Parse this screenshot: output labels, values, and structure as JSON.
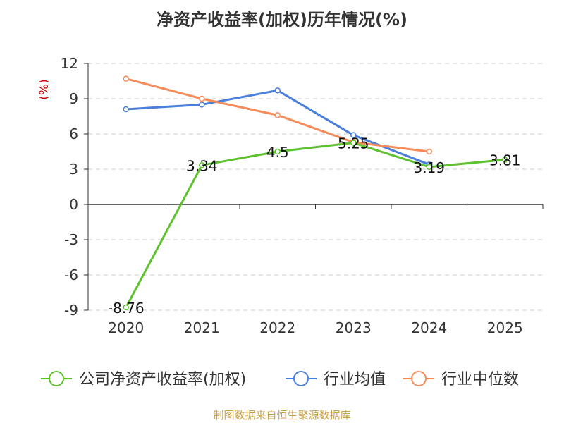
{
  "chart_data": {
    "type": "line",
    "title": "净资产收益率(加权)历年情况(%)",
    "ylabel": "(%)",
    "xlabel": "",
    "categories": [
      "2020",
      "2021",
      "2022",
      "2023",
      "2024",
      "2025"
    ],
    "ylim": [
      -9,
      12
    ],
    "yticks": [
      12,
      9,
      6,
      3,
      0,
      -3,
      -6,
      -9
    ],
    "grid": true,
    "legend_position": "bottom",
    "series": [
      {
        "name": "公司净资产收益率(加权)",
        "color": "#5ec22e",
        "values": [
          -8.76,
          3.34,
          4.5,
          5.25,
          3.19,
          3.81
        ],
        "labels": [
          "-8.76",
          "3.34",
          "4.5",
          "5.25",
          "3.19",
          "3.81"
        ]
      },
      {
        "name": "行业均值",
        "color": "#4a7fdc",
        "values": [
          8.1,
          8.5,
          9.7,
          5.9,
          3.4,
          null
        ]
      },
      {
        "name": "行业中位数",
        "color": "#f58c5a",
        "values": [
          10.7,
          9.0,
          7.6,
          5.3,
          4.5,
          null
        ]
      }
    ]
  },
  "footer": {
    "source": "制图数据来自恒生聚源数据库"
  }
}
